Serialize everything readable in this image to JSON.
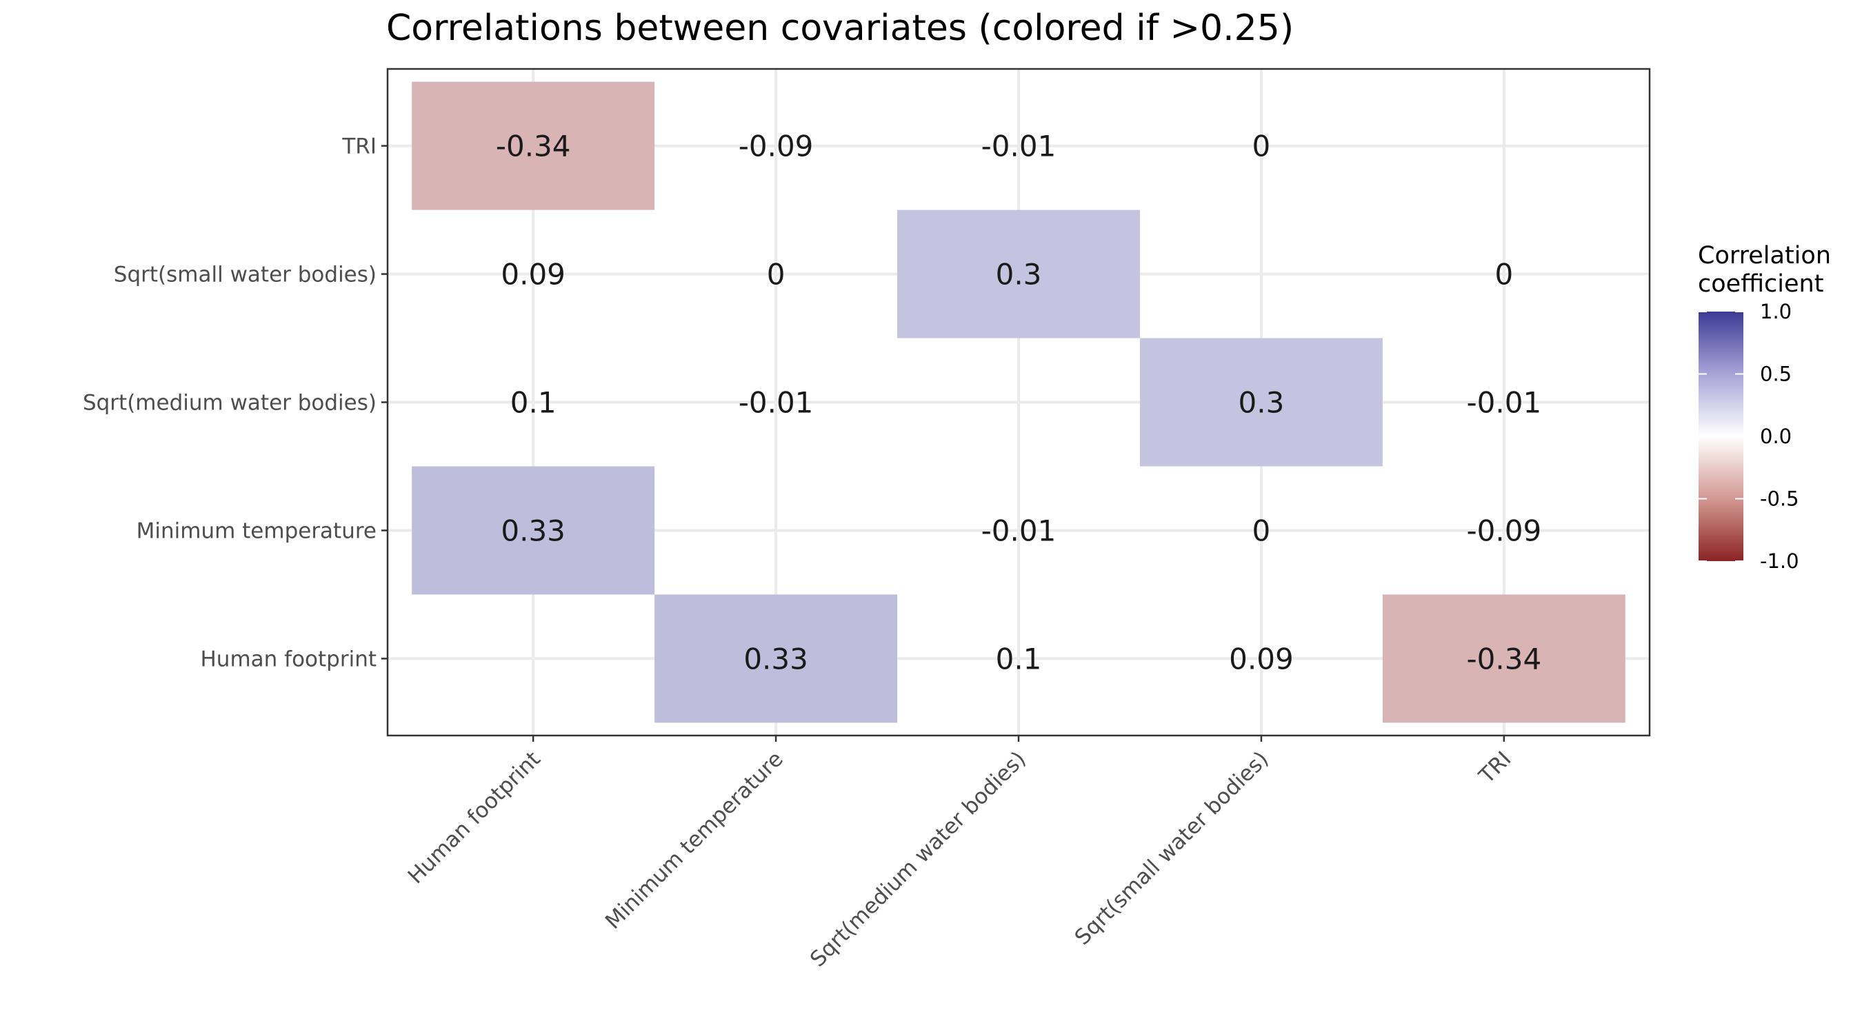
{
  "chart_data": {
    "type": "heatmap",
    "title": "Correlations between covariates (colored if >0.25)",
    "x_categories": [
      "Human footprint",
      "Minimum temperature",
      "Sqrt(medium water bodies)",
      "Sqrt(small water bodies)",
      "TRI"
    ],
    "y_categories": [
      "Human footprint",
      "Minimum temperature",
      "Sqrt(medium water bodies)",
      "Sqrt(small water bodies)",
      "TRI"
    ],
    "threshold": 0.25,
    "cells": [
      {
        "x": "Human footprint",
        "y": "TRI",
        "value": -0.34,
        "label": "-0.34"
      },
      {
        "x": "Minimum temperature",
        "y": "TRI",
        "value": -0.09,
        "label": "-0.09"
      },
      {
        "x": "Sqrt(medium water bodies)",
        "y": "TRI",
        "value": -0.01,
        "label": "-0.01"
      },
      {
        "x": "Sqrt(small water bodies)",
        "y": "TRI",
        "value": 0,
        "label": "0"
      },
      {
        "x": "Human footprint",
        "y": "Sqrt(small water bodies)",
        "value": 0.09,
        "label": "0.09"
      },
      {
        "x": "Minimum temperature",
        "y": "Sqrt(small water bodies)",
        "value": 0,
        "label": "0"
      },
      {
        "x": "Sqrt(medium water bodies)",
        "y": "Sqrt(small water bodies)",
        "value": 0.3,
        "label": "0.3"
      },
      {
        "x": "TRI",
        "y": "Sqrt(small water bodies)",
        "value": 0,
        "label": "0"
      },
      {
        "x": "Human footprint",
        "y": "Sqrt(medium water bodies)",
        "value": 0.1,
        "label": "0.1"
      },
      {
        "x": "Minimum temperature",
        "y": "Sqrt(medium water bodies)",
        "value": -0.01,
        "label": "-0.01"
      },
      {
        "x": "Sqrt(small water bodies)",
        "y": "Sqrt(medium water bodies)",
        "value": 0.3,
        "label": "0.3"
      },
      {
        "x": "TRI",
        "y": "Sqrt(medium water bodies)",
        "value": -0.01,
        "label": "-0.01"
      },
      {
        "x": "Human footprint",
        "y": "Minimum temperature",
        "value": 0.33,
        "label": "0.33"
      },
      {
        "x": "Sqrt(medium water bodies)",
        "y": "Minimum temperature",
        "value": -0.01,
        "label": "-0.01"
      },
      {
        "x": "Sqrt(small water bodies)",
        "y": "Minimum temperature",
        "value": 0,
        "label": "0"
      },
      {
        "x": "TRI",
        "y": "Minimum temperature",
        "value": -0.09,
        "label": "-0.09"
      },
      {
        "x": "Minimum temperature",
        "y": "Human footprint",
        "value": 0.33,
        "label": "0.33"
      },
      {
        "x": "Sqrt(medium water bodies)",
        "y": "Human footprint",
        "value": 0.1,
        "label": "0.1"
      },
      {
        "x": "Sqrt(small water bodies)",
        "y": "Human footprint",
        "value": 0.09,
        "label": "0.09"
      },
      {
        "x": "TRI",
        "y": "Human footprint",
        "value": -0.34,
        "label": "-0.34"
      }
    ],
    "legend": {
      "title_lines": [
        "Correlation",
        "coefficient"
      ],
      "range": [
        -1,
        1
      ],
      "ticks": [
        {
          "value": 1,
          "label": "1.0"
        },
        {
          "value": 0.5,
          "label": "0.5"
        },
        {
          "value": 0,
          "label": "0.0"
        },
        {
          "value": -0.5,
          "label": "-0.5"
        },
        {
          "value": -1,
          "label": "-1.0"
        }
      ],
      "placement": "right"
    },
    "colors": {
      "low": "#8b2323",
      "mid": "#ffffff",
      "high": "#3b3b96",
      "grid": "#ebebeb",
      "panel_border": "#333333"
    },
    "grid": true
  }
}
